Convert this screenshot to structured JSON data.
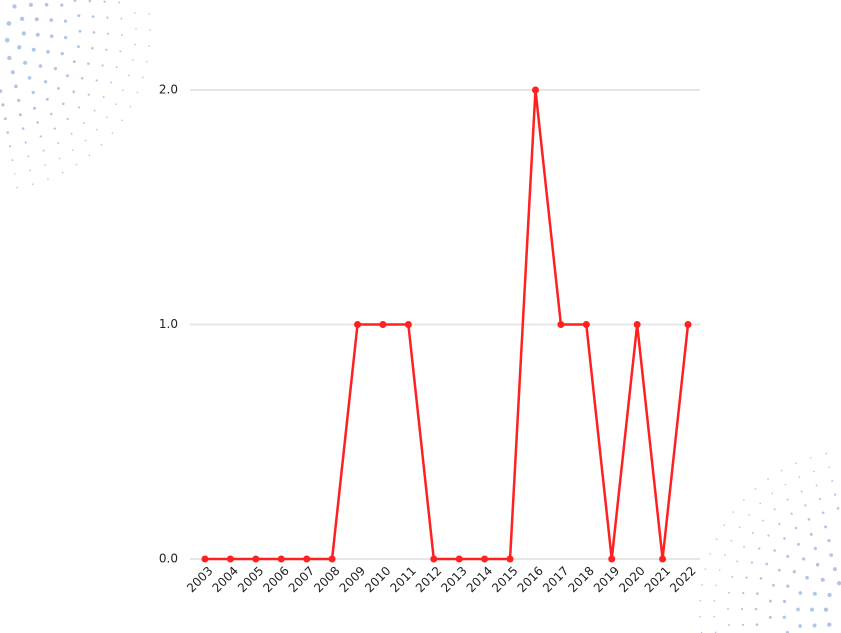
{
  "chart_data": {
    "type": "line",
    "categories": [
      "2003",
      "2004",
      "2005",
      "2006",
      "2007",
      "2008",
      "2009",
      "2010",
      "2011",
      "2012",
      "2013",
      "2014",
      "2015",
      "2016",
      "2017",
      "2018",
      "2019",
      "2020",
      "2021",
      "2022"
    ],
    "series": [
      {
        "color": "#ff2020",
        "values": [
          0,
          0,
          0,
          0,
          0,
          0,
          1,
          1,
          1,
          0,
          0,
          0,
          0,
          2,
          1,
          1,
          0,
          1,
          0,
          1
        ]
      }
    ],
    "ylim": [
      0,
      2
    ],
    "yticks": [
      {
        "value": 0,
        "label": "0.0"
      },
      {
        "value": 1,
        "label": "1.0"
      },
      {
        "value": 2,
        "label": "2.0"
      }
    ],
    "grid": true
  }
}
